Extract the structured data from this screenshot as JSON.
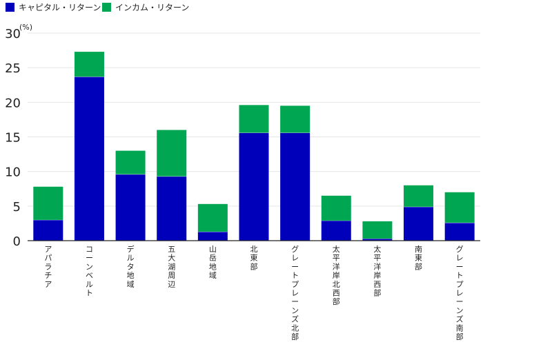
{
  "colors": {
    "capital": "#0000bb",
    "income": "#00a651",
    "grid": "#e6e6e6",
    "axis": "#222222"
  },
  "chart_data": {
    "type": "bar",
    "stacked": true,
    "unit_label": "(%)",
    "legend_position": "top-left",
    "grid": true,
    "ylim": [
      0,
      30
    ],
    "yticks": [
      0,
      5,
      10,
      15,
      20,
      25,
      30
    ],
    "categories": [
      "アパラチア",
      "コーンベルト",
      "デルタ地域",
      "五大湖周辺",
      "山岳地域",
      "北東部",
      "グレートプレーンズ北部",
      "太平洋岸北西部",
      "太平洋岸西部",
      "南東部",
      "グレートプレーンズ南部"
    ],
    "series": [
      {
        "name": "キャピタル・リターン",
        "color_key": "capital",
        "values": [
          3.0,
          23.7,
          9.6,
          9.3,
          1.3,
          15.6,
          15.6,
          2.9,
          0.3,
          4.9,
          2.6
        ]
      },
      {
        "name": "インカム・リターン",
        "color_key": "income",
        "values": [
          4.8,
          3.6,
          3.4,
          6.7,
          4.0,
          4.0,
          3.9,
          3.6,
          2.5,
          3.1,
          4.4
        ]
      }
    ]
  }
}
